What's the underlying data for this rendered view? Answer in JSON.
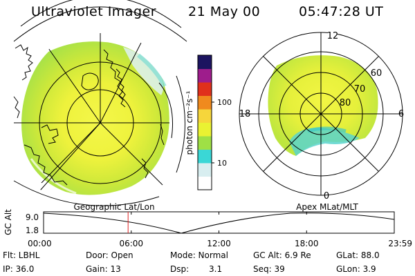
{
  "header": {
    "title": "Ultraviolet Imager",
    "date": "21 May 00",
    "time": "05:47:28 UT"
  },
  "colorbar": {
    "unit_label": "photon cm⁻²s⁻¹",
    "ticks": [
      "100",
      "10"
    ],
    "colors": [
      "#ffffff",
      "#d8eef0",
      "#3ad7d6",
      "#9fe045",
      "#eaf232",
      "#f6d63b",
      "#f08a1e",
      "#e0301c",
      "#9e1d8c",
      "#1c1460"
    ]
  },
  "apex_dial": {
    "mlt_labels": [
      "12",
      "18",
      "6",
      "0"
    ],
    "lat_labels": [
      "60",
      "70",
      "80"
    ]
  },
  "timeline": {
    "left_title": "Geographic Lat/Lon",
    "right_title": "Apex MLat/MLT",
    "axis_label": "GC Alt",
    "alt_max": "9.0",
    "alt_min": "1.8",
    "time_ticks": [
      "00:00",
      "06:00",
      "12:00",
      "18:00",
      "23:59"
    ],
    "current_time_fraction": 0.241,
    "marker_color": "#e02020"
  },
  "info": {
    "flt": "Flt: LBHL",
    "door": "Door: Open",
    "mode": "Mode: Normal",
    "gc_alt": "GC Alt: 6.9 Re",
    "glat": "GLat: 88.0",
    "ip": "IP: 36.0",
    "gain": "Gain: 13",
    "dsp_label": "Dsp:",
    "dsp_value": "3.1",
    "seq": "Seq: 39",
    "glon": "GLon: 3.9"
  }
}
